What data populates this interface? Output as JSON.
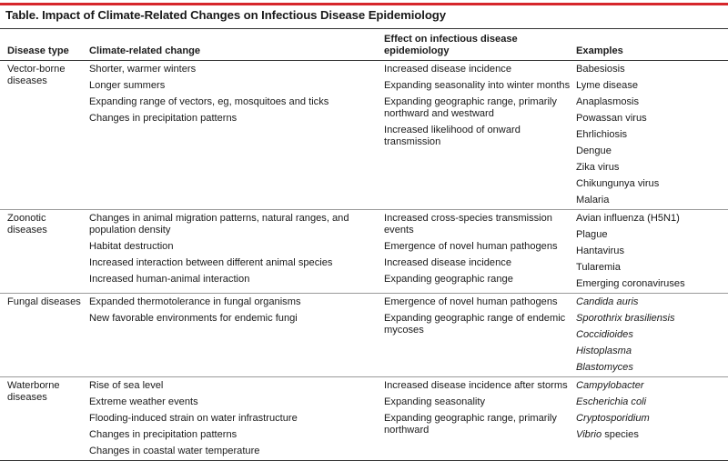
{
  "table_title": "Table. Impact of Climate-Related Changes on Infectious Disease Epidemiology",
  "headers": {
    "type": "Disease type",
    "change": "Climate-related change",
    "effect": "Effect on infectious disease epidemiology",
    "examples": "Examples"
  },
  "groups": [
    {
      "type": "Vector-borne diseases",
      "changes": [
        "Shorter, warmer winters",
        "Longer summers",
        "Expanding range of vectors, eg, mosquitoes and ticks",
        "Changes in precipitation patterns"
      ],
      "effects": [
        "Increased disease incidence",
        "Expanding seasonality into winter months",
        "Expanding geographic range, primarily northward and westward",
        "Increased likelihood of onward transmission"
      ],
      "examples": [
        "Babesiosis",
        "Lyme disease",
        "Anaplasmosis",
        "Powassan virus",
        "Ehrlichiosis",
        "Dengue",
        "Zika virus",
        "Chikungunya virus",
        "Malaria"
      ]
    },
    {
      "type": "Zoonotic diseases",
      "changes": [
        "Changes in animal migration patterns, natural ranges, and population density",
        "Habitat destruction",
        "Increased interaction between different animal species",
        "Increased human-animal interaction"
      ],
      "effects": [
        "Increased cross-species transmission events",
        "Emergence of novel human pathogens",
        "Increased disease incidence",
        "Expanding geographic range"
      ],
      "examples": [
        "Avian influenza (H5N1)",
        "Plague",
        "Hantavirus",
        "Tularemia",
        "Emerging coronaviruses"
      ]
    },
    {
      "type": "Fungal diseases",
      "changes": [
        "Expanded thermotolerance in fungal organisms",
        "New favorable environments for endemic fungi"
      ],
      "effects": [
        "Emergence of novel human pathogens",
        "Expanding geographic range of endemic mycoses"
      ],
      "examples": [
        "Candida auris",
        "Sporothrix brasiliensis",
        "Coccidioides",
        "Histoplasma",
        "Blastomyces"
      ]
    },
    {
      "type": "Waterborne diseases",
      "changes": [
        "Rise of sea level",
        "Extreme weather events",
        "Flooding-induced strain on water infrastructure",
        "Changes in precipitation patterns",
        "Changes in coastal water temperature"
      ],
      "effects": [
        "Increased disease incidence after storms",
        "Expanding seasonality",
        "Expanding geographic range, primarily northward"
      ],
      "examples": [
        "Campylobacter",
        "Escherichia coli",
        "Cryptosporidium",
        "Vibrio"
      ],
      "example_suffix": " species"
    }
  ]
}
